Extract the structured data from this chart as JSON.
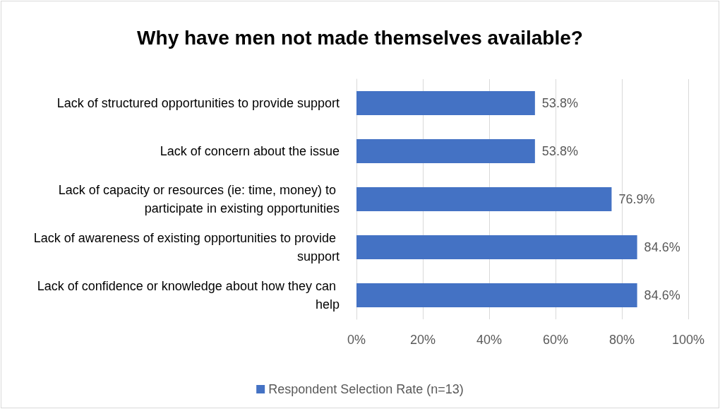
{
  "chart_data": {
    "type": "bar",
    "orientation": "horizontal",
    "title": "Why have men not made themselves available?",
    "categories": [
      "Lack of structured opportunities to provide support",
      "Lack of concern about the issue",
      "Lack of capacity or resources (ie: time, money) to participate in existing opportunities",
      "Lack of awareness of existing opportunities to provide support",
      "Lack of confidence or knowledge about how they can help"
    ],
    "series": [
      {
        "name": "Respondent Selection Rate (n=13)",
        "color": "#4472c4",
        "values": [
          53.8,
          53.8,
          76.9,
          84.6,
          84.6
        ],
        "value_labels": [
          "53.8%",
          "53.8%",
          "76.9%",
          "84.6%",
          "84.6%"
        ]
      }
    ],
    "xlim": [
      0,
      100
    ],
    "xticks": [
      {
        "value": 0,
        "label": "0%"
      },
      {
        "value": 20,
        "label": "20%"
      },
      {
        "value": 40,
        "label": "40%"
      },
      {
        "value": 60,
        "label": "60%"
      },
      {
        "value": 80,
        "label": "80%"
      },
      {
        "value": 100,
        "label": "100%"
      }
    ],
    "grid": "x",
    "legend": "bottom"
  }
}
